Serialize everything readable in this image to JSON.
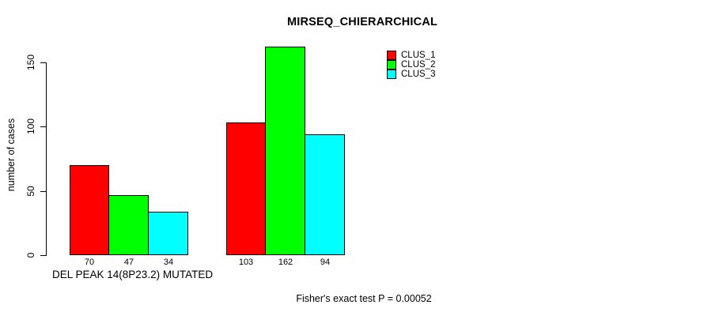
{
  "chart_data": {
    "type": "bar",
    "title": "MIRSEQ_CHIERARCHICAL",
    "ylabel": "number of cases",
    "xlabel": "DEL PEAK 14(8P23.2) MUTATED",
    "footer_annotation": "Fisher's exact test P = 0.00052",
    "yticks": [
      0,
      50,
      100,
      150
    ],
    "ylim": [
      0,
      162
    ],
    "grid": false,
    "legend_position": "top-right-inside",
    "legend": [
      {
        "label": "CLUS_1",
        "color": "#ff0000"
      },
      {
        "label": "CLUS_2",
        "color": "#00ff00"
      },
      {
        "label": "CLUS_3",
        "color": "#00ffff"
      }
    ],
    "categories": [
      "DEL PEAK 14(8P23.2) MUTATED",
      ""
    ],
    "series": [
      {
        "name": "CLUS_1",
        "values": [
          70,
          103
        ]
      },
      {
        "name": "CLUS_2",
        "values": [
          47,
          162
        ]
      },
      {
        "name": "CLUS_3",
        "values": [
          34,
          94
        ]
      }
    ],
    "groups": [
      {
        "values": [
          70,
          47,
          34
        ]
      },
      {
        "values": [
          103,
          162,
          94
        ]
      }
    ],
    "colors": {
      "bar_outline": "#000000",
      "axis": "#000000",
      "background": "#ffffff",
      "text": "#000000"
    }
  }
}
